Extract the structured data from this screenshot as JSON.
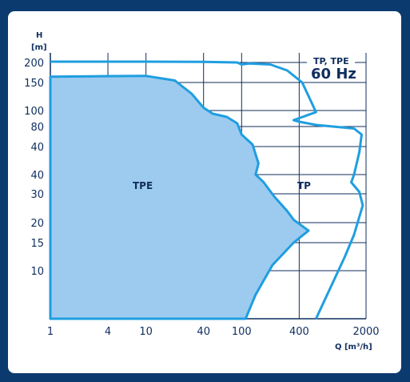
{
  "chart_data": {
    "type": "area",
    "title": "",
    "xlabel": "Q [m³/h]",
    "ylabel": "H\n[m]",
    "x_scale": "log",
    "x_ticks": [
      1,
      4,
      10,
      40,
      100,
      400,
      2000
    ],
    "y_ticks": [
      "200",
      "150",
      "100",
      "80",
      "40",
      "40",
      "30",
      "20",
      "15",
      "10"
    ],
    "legend_box": {
      "line1": "TP, TPE",
      "line2": "60 Hz"
    },
    "series": [
      {
        "name": "TPE",
        "style": "filled",
        "fill": "#9dcbef",
        "stroke": "#1f9ee0",
        "points": [
          [
            1,
            0.0
          ],
          [
            1,
            9.29
          ],
          [
            3,
            9.31
          ],
          [
            10,
            9.33
          ],
          [
            20,
            9.1
          ],
          [
            30,
            8.6
          ],
          [
            40,
            8.1
          ],
          [
            50,
            7.8
          ],
          [
            70,
            7.6
          ],
          [
            90,
            7.2
          ],
          [
            100,
            6.6
          ],
          [
            130,
            6.1
          ],
          [
            150,
            5.4
          ],
          [
            140,
            5.0
          ],
          [
            170,
            4.6
          ],
          [
            220,
            3.9
          ],
          [
            300,
            3.4
          ],
          [
            350,
            3.1
          ],
          [
            500,
            2.6
          ],
          [
            350,
            2.0
          ],
          [
            210,
            1.2
          ],
          [
            140,
            0.5
          ],
          [
            110,
            0.0
          ]
        ]
      },
      {
        "name": "TP",
        "style": "outline",
        "stroke": "#1f9ee0",
        "points": [
          [
            1,
            10.05
          ],
          [
            10,
            10.05
          ],
          [
            40,
            10.04
          ],
          [
            90,
            10.0
          ],
          [
            100,
            9.9
          ],
          [
            120,
            9.95
          ],
          [
            200,
            9.9
          ],
          [
            300,
            9.6
          ],
          [
            430,
            9.0
          ],
          [
            600,
            7.9
          ],
          [
            350,
            7.4
          ],
          [
            400,
            7.3
          ],
          [
            600,
            7.1
          ],
          [
            1500,
            6.9
          ],
          [
            1800,
            6.6
          ],
          [
            1700,
            5.8
          ],
          [
            1500,
            5.0
          ],
          [
            1400,
            4.6
          ],
          [
            1700,
            4.1
          ],
          [
            1850,
            3.6
          ],
          [
            1500,
            2.4
          ],
          [
            1200,
            1.5
          ],
          [
            600,
            0.0
          ]
        ]
      }
    ],
    "ylim": [
      0,
      10.6
    ],
    "xlim": [
      1,
      2000
    ],
    "grid": true
  }
}
